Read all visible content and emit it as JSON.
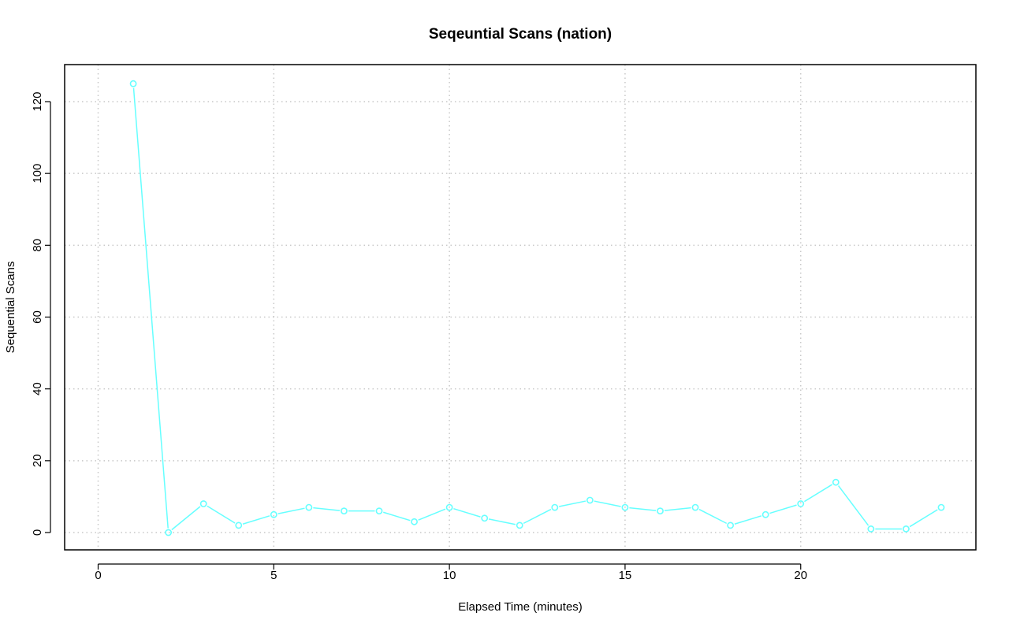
{
  "chart_data": {
    "type": "line",
    "title": "Seqeuntial Scans (nation)",
    "xlabel": "Elapsed Time (minutes)",
    "ylabel": "Sequential Scans",
    "xlim": [
      0,
      24
    ],
    "ylim": [
      0,
      125
    ],
    "x_ticks": [
      0,
      5,
      10,
      15,
      20
    ],
    "y_ticks": [
      0,
      20,
      40,
      60,
      80,
      100,
      120
    ],
    "grid": true,
    "legend": "none",
    "series": [
      {
        "color": "#66ffff",
        "marker": "open-circle",
        "x": [
          1,
          2,
          3,
          4,
          5,
          6,
          7,
          8,
          9,
          10,
          11,
          12,
          13,
          14,
          15,
          16,
          17,
          18,
          19,
          20,
          21,
          22,
          23,
          24
        ],
        "y": [
          125,
          0,
          8,
          2,
          5,
          7,
          6,
          6,
          3,
          7,
          4,
          2,
          7,
          9,
          7,
          6,
          7,
          2,
          5,
          8,
          14,
          1,
          1,
          7
        ]
      }
    ]
  }
}
